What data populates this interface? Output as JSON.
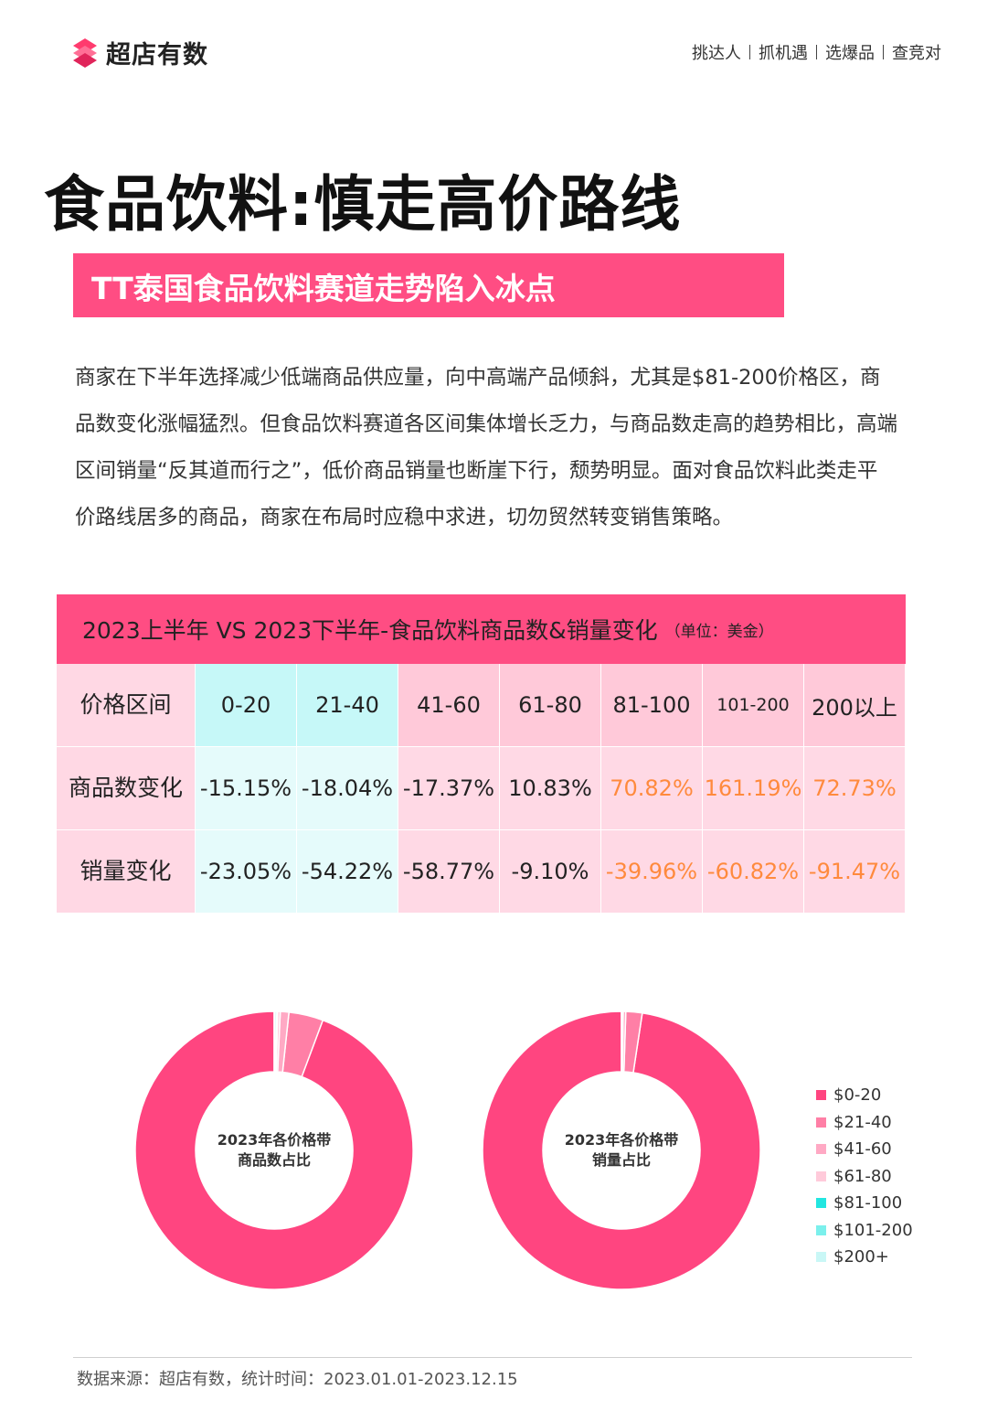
{
  "header": {
    "brand": "超店有数",
    "nav": [
      "挑达人",
      "抓机遇",
      "选爆品",
      "查竞对"
    ]
  },
  "title": "食品饮料:慎走高价路线",
  "banner": "TT泰国食品饮料赛道走势陷入冰点",
  "paragraph": "商家在下半年选择减少低端商品供应量，向中高端产品倾斜，尤其是$81-200价格区，商品数变化涨幅猛烈。但食品饮料赛道各区间集体增长乏力，与商品数走高的趋势相比，高端区间销量“反其道而行之”，低价商品销量也断崖下行，颓势明显。面对食品饮料此类走平价路线居多的商品，商家在布局时应稳中求进，切勿贸然转变销售策略。",
  "table": {
    "title": "2023上半年 VS 2023下半年-食品饮料商品数&销量变化",
    "unit": "（单位：美金）",
    "row_headers": [
      "价格区间",
      "商品数变化",
      "销量变化"
    ],
    "ranges": [
      "0-20",
      "21-40",
      "41-60",
      "61-80",
      "81-100",
      "101-200",
      "200以上"
    ],
    "product_count_change": [
      "-15.15%",
      "-18.04%",
      "-17.37%",
      "10.83%",
      "70.82%",
      "161.19%",
      "72.73%"
    ],
    "sales_change": [
      "-23.05%",
      "-54.22%",
      "-58.77%",
      "-9.10%",
      "-39.96%",
      "-60.82%",
      "-91.47%"
    ]
  },
  "chart_data": [
    {
      "type": "pie",
      "title": "2023年各价格带商品数占比",
      "categories": [
        "$0-20",
        "$21-40",
        "$41-60",
        "$61-80",
        "$81-100",
        "$101-200",
        "$200+"
      ],
      "values": [
        94.3,
        4.0,
        1.0,
        0.3,
        0.1,
        0.2,
        0.1
      ]
    },
    {
      "type": "pie",
      "title": "2023年各价格带销量占比",
      "categories": [
        "$0-20",
        "$21-40",
        "$41-60",
        "$61-80",
        "$81-100",
        "$101-200",
        "$200+"
      ],
      "values": [
        97.6,
        1.9,
        0.3,
        0.1,
        0.03,
        0.04,
        0.03
      ]
    }
  ],
  "legend": {
    "items": [
      "$0-20",
      "$21-40",
      "$41-60",
      "$61-80",
      "$81-100",
      "$101-200",
      "$200+"
    ],
    "colors": [
      "#ff4580",
      "#ff7fa6",
      "#ffa9c4",
      "#ffcada",
      "#22e6e0",
      "#7bf0ec",
      "#c9f7f6"
    ]
  },
  "footer": "数据来源：超店有数，统计时间：2023.01.01-2023.12.15"
}
